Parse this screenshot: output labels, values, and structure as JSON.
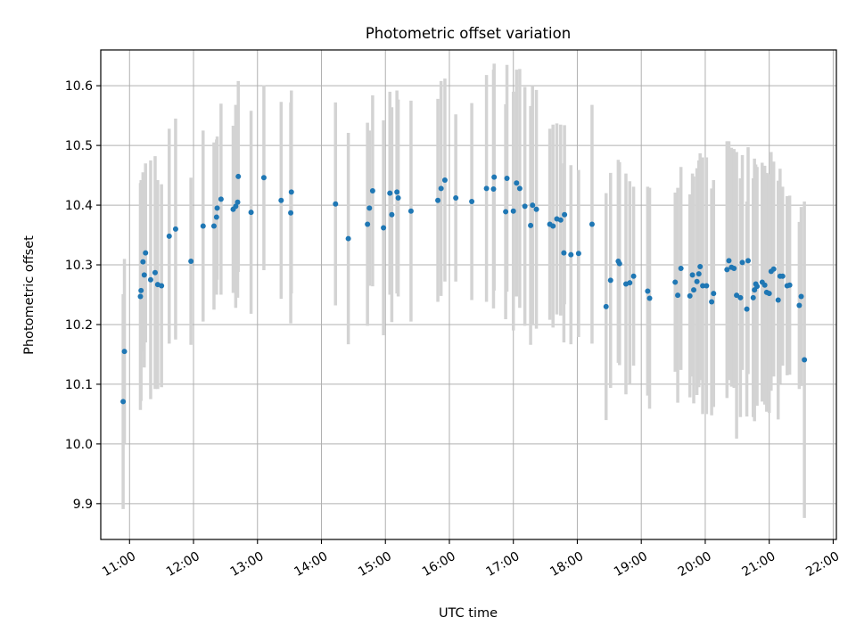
{
  "chart_data": {
    "type": "scatter",
    "title": "Photometric offset variation",
    "xlabel": "UTC time",
    "ylabel": "Photometric offset",
    "xlim": [
      10.55,
      22.05
    ],
    "ylim": [
      9.84,
      10.66
    ],
    "x_unit": "hours UTC",
    "xticks": [
      {
        "v": 11,
        "label": "11:00"
      },
      {
        "v": 12,
        "label": "12:00"
      },
      {
        "v": 13,
        "label": "13:00"
      },
      {
        "v": 14,
        "label": "14:00"
      },
      {
        "v": 15,
        "label": "15:00"
      },
      {
        "v": 16,
        "label": "16:00"
      },
      {
        "v": 17,
        "label": "17:00"
      },
      {
        "v": 18,
        "label": "18:00"
      },
      {
        "v": 19,
        "label": "19:00"
      },
      {
        "v": 20,
        "label": "20:00"
      },
      {
        "v": 21,
        "label": "21:00"
      },
      {
        "v": 22,
        "label": "22:00"
      }
    ],
    "yticks": [
      {
        "v": 9.9,
        "label": "9.9"
      },
      {
        "v": 10.0,
        "label": "10.0"
      },
      {
        "v": 10.1,
        "label": "10.1"
      },
      {
        "v": 10.2,
        "label": "10.2"
      },
      {
        "v": 10.3,
        "label": "10.3"
      },
      {
        "v": 10.4,
        "label": "10.4"
      },
      {
        "v": 10.5,
        "label": "10.5"
      },
      {
        "v": 10.6,
        "label": "10.6"
      }
    ],
    "grid": true,
    "colors": {
      "point": "#1f77b4",
      "errorbar": "#d3d3d3",
      "grid": "#b0b0b0"
    },
    "points": [
      [
        10.9,
        10.071,
        0.18
      ],
      [
        10.92,
        10.155,
        0.155
      ],
      [
        11.17,
        10.247,
        0.19
      ],
      [
        11.18,
        10.257,
        0.185
      ],
      [
        11.21,
        10.305,
        0.15
      ],
      [
        11.23,
        10.283,
        0.155
      ],
      [
        11.25,
        10.32,
        0.15
      ],
      [
        11.33,
        10.275,
        0.2
      ],
      [
        11.4,
        10.287,
        0.195
      ],
      [
        11.44,
        10.267,
        0.175
      ],
      [
        11.5,
        10.265,
        0.17
      ],
      [
        11.62,
        10.348,
        0.18
      ],
      [
        11.72,
        10.36,
        0.185
      ],
      [
        11.96,
        10.306,
        0.14
      ],
      [
        12.15,
        10.365,
        0.16
      ],
      [
        12.32,
        10.365,
        0.14
      ],
      [
        12.36,
        10.38,
        0.13
      ],
      [
        12.37,
        10.395,
        0.12
      ],
      [
        12.43,
        10.41,
        0.16
      ],
      [
        12.62,
        10.393,
        0.14
      ],
      [
        12.66,
        10.398,
        0.17
      ],
      [
        12.69,
        10.405,
        0.16
      ],
      [
        12.7,
        10.448,
        0.16
      ],
      [
        12.9,
        10.388,
        0.17
      ],
      [
        13.1,
        10.446,
        0.155
      ],
      [
        13.37,
        10.408,
        0.165
      ],
      [
        13.52,
        10.387,
        0.185
      ],
      [
        13.53,
        10.422,
        0.17
      ],
      [
        14.22,
        10.402,
        0.17
      ],
      [
        14.42,
        10.344,
        0.177
      ],
      [
        14.72,
        10.368,
        0.17
      ],
      [
        14.75,
        10.395,
        0.13
      ],
      [
        14.8,
        10.424,
        0.16
      ],
      [
        14.97,
        10.362,
        0.18
      ],
      [
        15.07,
        10.42,
        0.17
      ],
      [
        15.1,
        10.384,
        0.18
      ],
      [
        15.18,
        10.422,
        0.17
      ],
      [
        15.2,
        10.412,
        0.165
      ],
      [
        15.4,
        10.39,
        0.185
      ],
      [
        15.82,
        10.408,
        0.17
      ],
      [
        15.87,
        10.428,
        0.18
      ],
      [
        15.93,
        10.442,
        0.17
      ],
      [
        16.1,
        10.412,
        0.14
      ],
      [
        16.35,
        10.406,
        0.165
      ],
      [
        16.58,
        10.428,
        0.19
      ],
      [
        16.69,
        10.427,
        0.2
      ],
      [
        16.7,
        10.447,
        0.19
      ],
      [
        16.88,
        10.389,
        0.18
      ],
      [
        16.9,
        10.445,
        0.19
      ],
      [
        17.0,
        10.39,
        0.2
      ],
      [
        17.05,
        10.437,
        0.19
      ],
      [
        17.1,
        10.428,
        0.2
      ],
      [
        17.18,
        10.398,
        0.2
      ],
      [
        17.27,
        10.366,
        0.2
      ],
      [
        17.3,
        10.4,
        0.2
      ],
      [
        17.36,
        10.393,
        0.2
      ],
      [
        17.57,
        10.368,
        0.16
      ],
      [
        17.62,
        10.365,
        0.17
      ],
      [
        17.68,
        10.377,
        0.16
      ],
      [
        17.74,
        10.375,
        0.16
      ],
      [
        17.8,
        10.384,
        0.15
      ],
      [
        17.79,
        10.32,
        0.15
      ],
      [
        17.9,
        10.317,
        0.15
      ],
      [
        18.02,
        10.319,
        0.14
      ],
      [
        18.23,
        10.368,
        0.2
      ],
      [
        18.45,
        10.23,
        0.19
      ],
      [
        18.52,
        10.274,
        0.18
      ],
      [
        18.64,
        10.306,
        0.17
      ],
      [
        18.66,
        10.302,
        0.17
      ],
      [
        18.76,
        10.268,
        0.185
      ],
      [
        18.82,
        10.27,
        0.17
      ],
      [
        18.88,
        10.281,
        0.15
      ],
      [
        19.1,
        10.256,
        0.175
      ],
      [
        19.13,
        10.244,
        0.185
      ],
      [
        19.53,
        10.271,
        0.15
      ],
      [
        19.57,
        10.249,
        0.18
      ],
      [
        19.62,
        10.294,
        0.17
      ],
      [
        19.76,
        10.248,
        0.17
      ],
      [
        19.8,
        10.283,
        0.17
      ],
      [
        19.82,
        10.258,
        0.19
      ],
      [
        19.87,
        10.272,
        0.19
      ],
      [
        19.9,
        10.285,
        0.19
      ],
      [
        19.92,
        10.297,
        0.19
      ],
      [
        19.96,
        10.265,
        0.215
      ],
      [
        20.02,
        10.265,
        0.215
      ],
      [
        20.1,
        10.238,
        0.19
      ],
      [
        20.13,
        10.252,
        0.19
      ],
      [
        20.34,
        10.292,
        0.215
      ],
      [
        20.37,
        10.307,
        0.2
      ],
      [
        20.41,
        10.296,
        0.2
      ],
      [
        20.45,
        10.294,
        0.2
      ],
      [
        20.49,
        10.249,
        0.24
      ],
      [
        20.55,
        10.245,
        0.2
      ],
      [
        20.58,
        10.304,
        0.18
      ],
      [
        20.65,
        10.226,
        0.18
      ],
      [
        20.67,
        10.307,
        0.19
      ],
      [
        20.75,
        10.245,
        0.2
      ],
      [
        20.77,
        10.258,
        0.22
      ],
      [
        20.79,
        10.268,
        0.2
      ],
      [
        20.81,
        10.264,
        0.2
      ],
      [
        20.89,
        10.271,
        0.2
      ],
      [
        20.93,
        10.266,
        0.2
      ],
      [
        20.96,
        10.254,
        0.2
      ],
      [
        21.0,
        10.252,
        0.2
      ],
      [
        21.03,
        10.289,
        0.2
      ],
      [
        21.07,
        10.293,
        0.18
      ],
      [
        21.14,
        10.241,
        0.2
      ],
      [
        21.17,
        10.281,
        0.18
      ],
      [
        21.21,
        10.281,
        0.15
      ],
      [
        21.28,
        10.265,
        0.15
      ],
      [
        21.32,
        10.266,
        0.15
      ],
      [
        21.47,
        10.232,
        0.14
      ],
      [
        21.5,
        10.247,
        0.15
      ],
      [
        21.55,
        10.141,
        0.265
      ]
    ]
  }
}
